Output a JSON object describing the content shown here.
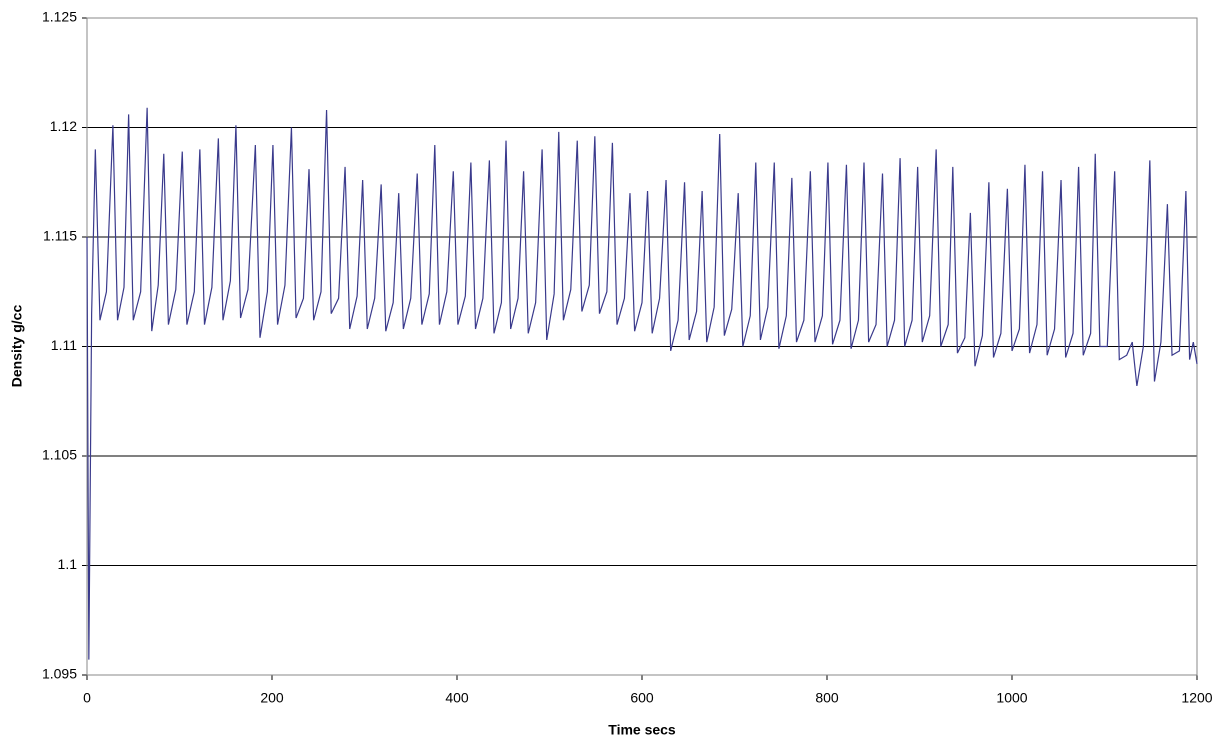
{
  "chart_data": {
    "type": "line",
    "xlabel": "Time secs",
    "ylabel": "Density g/cc",
    "xlim": [
      0,
      1200
    ],
    "xticks": [
      0,
      200,
      400,
      600,
      800,
      1000,
      1200
    ],
    "ylim": [
      1.095,
      1.125
    ],
    "yticks": [
      1.095,
      1.1,
      1.105,
      1.11,
      1.115,
      1.12,
      1.125
    ],
    "grid": true,
    "series": [
      {
        "color": "#3a3a8c",
        "x": [
          0,
          2,
          5,
          9,
          14,
          21,
          28,
          33,
          40,
          45,
          50,
          58,
          65,
          70,
          77,
          83,
          88,
          96,
          103,
          108,
          116,
          122,
          127,
          135,
          142,
          147,
          155,
          161,
          166,
          174,
          182,
          187,
          195,
          201,
          206,
          214,
          221,
          226,
          234,
          240,
          245,
          253,
          259,
          264,
          272,
          279,
          284,
          292,
          298,
          303,
          311,
          318,
          323,
          331,
          337,
          342,
          350,
          357,
          362,
          370,
          376,
          381,
          389,
          396,
          401,
          409,
          415,
          420,
          428,
          435,
          440,
          448,
          453,
          458,
          466,
          472,
          477,
          485,
          492,
          497,
          505,
          510,
          515,
          523,
          530,
          535,
          543,
          549,
          554,
          562,
          568,
          573,
          581,
          587,
          592,
          600,
          606,
          611,
          619,
          626,
          631,
          639,
          646,
          651,
          659,
          665,
          670,
          678,
          684,
          689,
          697,
          704,
          709,
          717,
          723,
          728,
          736,
          743,
          748,
          756,
          762,
          767,
          775,
          782,
          787,
          795,
          801,
          806,
          814,
          821,
          826,
          834,
          840,
          845,
          853,
          860,
          865,
          873,
          879,
          884,
          892,
          898,
          903,
          911,
          918,
          923,
          931,
          936,
          941,
          949,
          955,
          960,
          968,
          975,
          980,
          988,
          995,
          1000,
          1008,
          1014,
          1019,
          1027,
          1033,
          1038,
          1046,
          1053,
          1058,
          1066,
          1072,
          1077,
          1085,
          1090,
          1095,
          1103,
          1111,
          1116,
          1124,
          1130,
          1135,
          1142,
          1149,
          1154,
          1161,
          1168,
          1173,
          1181,
          1188,
          1192,
          1196,
          1200
        ],
        "values": [
          1.115,
          1.0957,
          1.1115,
          1.119,
          1.1112,
          1.1125,
          1.1201,
          1.1112,
          1.1127,
          1.1206,
          1.1112,
          1.1125,
          1.1209,
          1.1107,
          1.1128,
          1.1188,
          1.111,
          1.1126,
          1.1189,
          1.111,
          1.1125,
          1.119,
          1.111,
          1.1127,
          1.1195,
          1.1112,
          1.113,
          1.1201,
          1.1113,
          1.1126,
          1.1192,
          1.1104,
          1.1125,
          1.1192,
          1.111,
          1.1128,
          1.12,
          1.1113,
          1.1122,
          1.1181,
          1.1112,
          1.1125,
          1.1208,
          1.1115,
          1.1122,
          1.1182,
          1.1108,
          1.1123,
          1.1176,
          1.1108,
          1.1122,
          1.1174,
          1.1107,
          1.112,
          1.117,
          1.1108,
          1.1122,
          1.1179,
          1.111,
          1.1124,
          1.1192,
          1.111,
          1.1125,
          1.118,
          1.111,
          1.1123,
          1.1184,
          1.1108,
          1.1122,
          1.1185,
          1.1106,
          1.112,
          1.1194,
          1.1108,
          1.1122,
          1.118,
          1.1106,
          1.112,
          1.119,
          1.1103,
          1.1124,
          1.1198,
          1.1112,
          1.1126,
          1.1194,
          1.1116,
          1.1128,
          1.1196,
          1.1115,
          1.1125,
          1.1193,
          1.111,
          1.1122,
          1.117,
          1.1107,
          1.112,
          1.1171,
          1.1106,
          1.1122,
          1.1176,
          1.1098,
          1.1112,
          1.1175,
          1.1103,
          1.1116,
          1.1171,
          1.1102,
          1.1118,
          1.1197,
          1.1105,
          1.1117,
          1.117,
          1.11,
          1.1114,
          1.1184,
          1.1103,
          1.1118,
          1.1184,
          1.1099,
          1.1114,
          1.1177,
          1.1102,
          1.1112,
          1.118,
          1.1102,
          1.1114,
          1.1184,
          1.1101,
          1.1112,
          1.1183,
          1.1099,
          1.1112,
          1.1184,
          1.1102,
          1.111,
          1.1179,
          1.11,
          1.1112,
          1.1186,
          1.11,
          1.1112,
          1.1182,
          1.1102,
          1.1114,
          1.119,
          1.11,
          1.111,
          1.1182,
          1.1097,
          1.1104,
          1.1161,
          1.1091,
          1.1105,
          1.1175,
          1.1095,
          1.1106,
          1.1172,
          1.1098,
          1.1108,
          1.1183,
          1.1097,
          1.111,
          1.118,
          1.1096,
          1.1108,
          1.1176,
          1.1095,
          1.1106,
          1.1182,
          1.1096,
          1.1106,
          1.1188,
          1.11,
          1.11,
          1.118,
          1.1094,
          1.1096,
          1.1102,
          1.1082,
          1.11,
          1.1185,
          1.1084,
          1.1102,
          1.1165,
          1.1096,
          1.1098,
          1.1171,
          1.1094,
          1.1102,
          1.1092
        ]
      }
    ]
  }
}
